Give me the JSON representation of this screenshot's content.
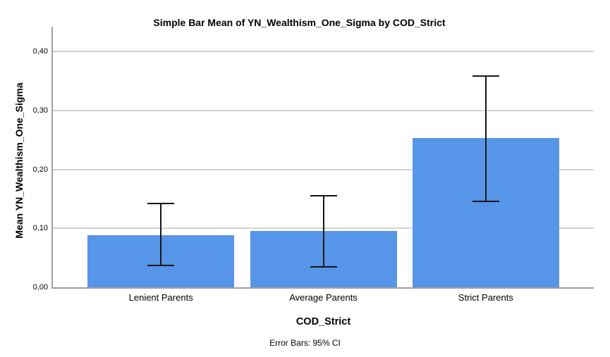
{
  "chart_data": {
    "type": "bar",
    "title": "Simple Bar Mean of YN_Wealthism_One_Sigma by COD_Strict",
    "xlabel": "COD_Strict",
    "ylabel": "Mean YN_Wealthism_One_Sigma",
    "footnote": "Error Bars: 95% CI",
    "categories": [
      "Lenient Parents",
      "Average Parents",
      "Strict Parents"
    ],
    "values": [
      0.088,
      0.095,
      0.253
    ],
    "error_bars": {
      "label": "95% CI",
      "lower": [
        0.036,
        0.034,
        0.145
      ],
      "upper": [
        0.143,
        0.156,
        0.36
      ]
    },
    "yticks": [
      {
        "value": 0.0,
        "label": "0,00"
      },
      {
        "value": 0.1,
        "label": "0,10"
      },
      {
        "value": 0.2,
        "label": "0,20"
      },
      {
        "value": 0.3,
        "label": "0,30"
      },
      {
        "value": 0.4,
        "label": "0,40"
      }
    ],
    "ylim": [
      0,
      0.442
    ],
    "grid": "horizontal",
    "legend": "none",
    "colors": {
      "bar": "#5795E8",
      "gridline": "#D4D4D4",
      "axis": "#A0A0A0",
      "error_bar": "#161616",
      "text": "#000000",
      "background": "#FFFFFF"
    }
  }
}
